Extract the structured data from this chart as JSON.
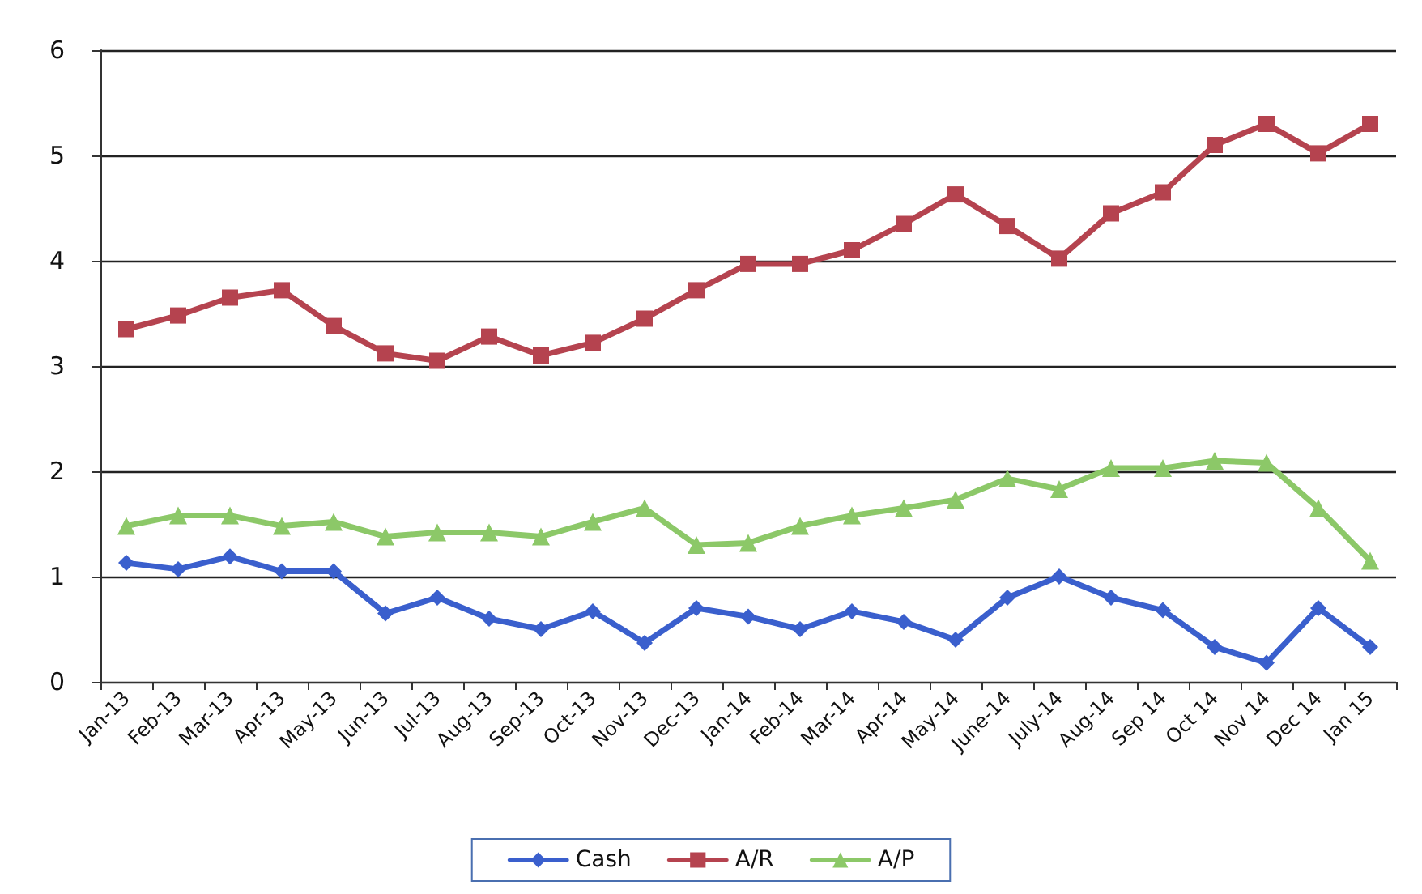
{
  "chart_data": {
    "type": "line",
    "categories": [
      "Jan-13",
      "Feb-13",
      "Mar-13",
      "Apr-13",
      "May-13",
      "Jun-13",
      "Jul-13",
      "Aug-13",
      "Sep-13",
      "Oct-13",
      "Nov-13",
      "Dec-13",
      "Jan-14",
      "Feb-14",
      "Mar-14",
      "Apr-14",
      "May-14",
      "June-14",
      "July-14",
      "Aug-14",
      "Sep 14",
      "Oct 14",
      "Nov 14",
      "Dec 14",
      "Jan 15"
    ],
    "series": [
      {
        "name": "Cash",
        "color": "#3a5fcd",
        "marker": "diamond",
        "values": [
          1.13,
          1.07,
          1.19,
          1.05,
          1.05,
          0.65,
          0.8,
          0.6,
          0.5,
          0.67,
          0.37,
          0.7,
          0.62,
          0.5,
          0.67,
          0.57,
          0.4,
          0.8,
          1.0,
          0.8,
          0.68,
          0.33,
          0.18,
          0.7,
          0.33
        ]
      },
      {
        "name": "A/R",
        "color": "#b5434f",
        "marker": "square",
        "values": [
          3.35,
          3.48,
          3.65,
          3.72,
          3.38,
          3.12,
          3.05,
          3.28,
          3.1,
          3.22,
          3.45,
          3.72,
          3.97,
          3.97,
          4.1,
          4.35,
          4.63,
          4.33,
          4.02,
          4.45,
          4.65,
          5.1,
          5.3,
          5.02,
          5.3
        ]
      },
      {
        "name": "A/P",
        "color": "#8cc868",
        "marker": "triangle",
        "values": [
          1.48,
          1.58,
          1.58,
          1.48,
          1.52,
          1.38,
          1.42,
          1.42,
          1.38,
          1.52,
          1.65,
          1.3,
          1.32,
          1.48,
          1.58,
          1.65,
          1.73,
          1.93,
          1.83,
          2.03,
          2.03,
          2.1,
          2.08,
          1.65,
          1.15
        ]
      }
    ],
    "ylim": [
      0,
      6
    ],
    "yticks": [
      0,
      1,
      2,
      3,
      4,
      5,
      6
    ],
    "grid": "y",
    "legend": "bottom",
    "line_style": "solid"
  }
}
